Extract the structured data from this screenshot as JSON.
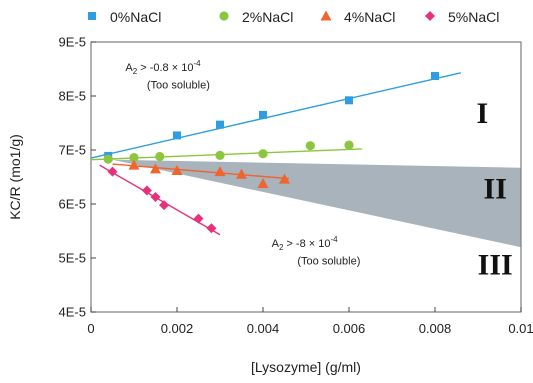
{
  "chart_data": {
    "type": "scatter",
    "xlabel": "[Lysozyme] (g/ml)",
    "ylabel": "KC/R (mo1/g)",
    "xlim": [
      0,
      0.01
    ],
    "ylim": [
      4e-05,
      9e-05
    ],
    "x_ticks": [
      {
        "value": 0,
        "label": "0"
      },
      {
        "value": 0.002,
        "label": "0.002"
      },
      {
        "value": 0.004,
        "label": "0.004"
      },
      {
        "value": 0.006,
        "label": "0.006"
      },
      {
        "value": 0.008,
        "label": "0.008"
      },
      {
        "value": 0.01,
        "label": "0.01"
      }
    ],
    "y_ticks": [
      {
        "value": 4e-05,
        "label": "4E-5"
      },
      {
        "value": 5e-05,
        "label": "5E-5"
      },
      {
        "value": 6e-05,
        "label": "6E-5"
      },
      {
        "value": 7e-05,
        "label": "7E-5"
      },
      {
        "value": 8e-05,
        "label": "8E-5"
      },
      {
        "value": 9e-05,
        "label": "9E-5"
      }
    ],
    "grid": false,
    "legend": "top",
    "series": [
      {
        "name": "0%NaCl",
        "marker": "square",
        "color": "#2e9ee0",
        "x": [
          0.0004,
          0.002,
          0.003,
          0.004,
          0.006,
          0.008
        ],
        "y": [
          6.89e-05,
          7.27e-05,
          7.47e-05,
          7.65e-05,
          7.92e-05,
          8.37e-05
        ],
        "fit": {
          "x": [
            0.0,
            0.0086
          ],
          "y": [
            6.85e-05,
            8.43e-05
          ]
        }
      },
      {
        "name": "2%NaCl",
        "marker": "circle",
        "color": "#8cc63f",
        "x": [
          0.0004,
          0.001,
          0.0016,
          0.003,
          0.004,
          0.0051,
          0.006
        ],
        "y": [
          6.83e-05,
          6.86e-05,
          6.88e-05,
          6.9e-05,
          6.93e-05,
          7.08e-05,
          7.09e-05
        ],
        "fit": {
          "x": [
            0.0,
            0.0063
          ],
          "y": [
            6.82e-05,
            7.02e-05
          ]
        }
      },
      {
        "name": "4%NaCl",
        "marker": "triangle",
        "color": "#f0642d",
        "x": [
          0.001,
          0.0015,
          0.002,
          0.003,
          0.0035,
          0.004,
          0.0045
        ],
        "y": [
          6.72e-05,
          6.65e-05,
          6.62e-05,
          6.6e-05,
          6.55e-05,
          6.38e-05,
          6.46e-05
        ],
        "fit": {
          "x": [
            0.0005,
            0.0046
          ],
          "y": [
            6.74e-05,
            6.47e-05
          ]
        }
      },
      {
        "name": "5%NaCl",
        "marker": "diamond",
        "color": "#e8317d",
        "x": [
          0.0005,
          0.0013,
          0.0015,
          0.0017,
          0.0025,
          0.0028
        ],
        "y": [
          6.6e-05,
          6.25e-05,
          6.13e-05,
          5.98e-05,
          5.73e-05,
          5.55e-05
        ],
        "fit": {
          "x": [
            0.0002,
            0.003
          ],
          "y": [
            6.72e-05,
            5.43e-05
          ]
        }
      }
    ],
    "shaded_region": {
      "color": "#a8b3bc",
      "points": [
        [
          0.0005,
          6.82e-05
        ],
        [
          0.01,
          6.67e-05
        ],
        [
          0.01,
          5.2e-05
        ]
      ]
    },
    "annotations": [
      {
        "id": "a2-top",
        "main": "A",
        "sub": "2",
        "rest": " > -0.8 × 10",
        "sup": "-4",
        "x": 0.0008,
        "y": 8.46e-05
      },
      {
        "id": "soluble-top",
        "text": "(Too soluble)",
        "x": 0.0013,
        "y": 8.14e-05
      },
      {
        "id": "a2-bottom",
        "main": "A",
        "sub": "2",
        "rest": " > -8 × 10",
        "sup": "-4",
        "x": 0.0042,
        "y": 5.2e-05
      },
      {
        "id": "soluble-bottom",
        "text": "(Too soluble)",
        "x": 0.0048,
        "y": 4.88e-05
      }
    ],
    "regions": [
      {
        "label": "I",
        "x": 0.0091,
        "y": 7.5e-05
      },
      {
        "label": "II",
        "x": 0.0094,
        "y": 6.1e-05
      },
      {
        "label": "III",
        "x": 0.0094,
        "y": 4.69e-05
      }
    ]
  }
}
